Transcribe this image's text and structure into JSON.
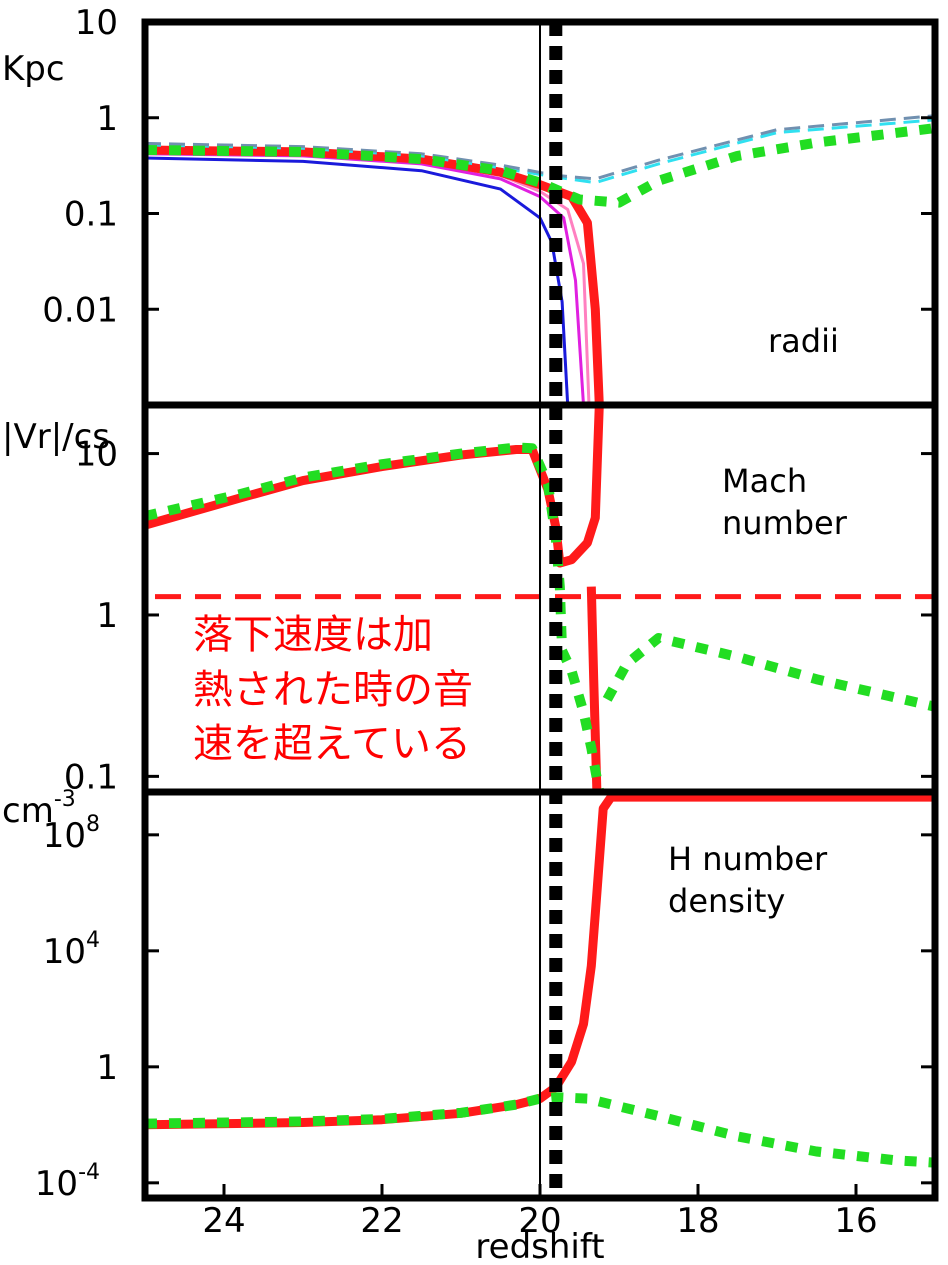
{
  "chart_data": {
    "type": "line",
    "xlabel": "redshift",
    "x_ticks": [
      "24",
      "22",
      "20",
      "18",
      "16"
    ],
    "xlim": [
      25,
      15
    ],
    "marker_line_z": 20,
    "dotted_marker_z": 19.8,
    "colors": {
      "red": "#ff1a1a",
      "green": "#22dd22",
      "blue": "#1a1adb",
      "magenta": "#e020e0",
      "pink": "#ff80c0",
      "cyan": "#30e0f0",
      "gray": "#7090b0"
    },
    "panels": [
      {
        "id": "radii",
        "label": "radii",
        "y_unit": "Kpc",
        "y_scale": "log",
        "ylim": [
          0.001,
          10
        ],
        "y_ticks": [
          {
            "value": 10,
            "base": "10",
            "exp": ""
          },
          {
            "value": 1,
            "base": "1",
            "exp": ""
          },
          {
            "value": 0.1,
            "base": "0.1",
            "exp": ""
          },
          {
            "value": 0.01,
            "base": "0.01",
            "exp": ""
          }
        ],
        "series": [
          {
            "color": "blue",
            "style": "solid",
            "width": 3,
            "points": [
              [
                25,
                0.38
              ],
              [
                23,
                0.35
              ],
              [
                21.5,
                0.28
              ],
              [
                20.5,
                0.18
              ],
              [
                20.0,
                0.09
              ],
              [
                19.85,
                0.05
              ],
              [
                19.72,
                0.012
              ],
              [
                19.65,
                0.001
              ]
            ]
          },
          {
            "color": "magenta",
            "style": "solid",
            "width": 3,
            "points": [
              [
                25,
                0.42
              ],
              [
                23,
                0.4
              ],
              [
                21.5,
                0.33
              ],
              [
                20.5,
                0.23
              ],
              [
                20.0,
                0.15
              ],
              [
                19.7,
                0.09
              ],
              [
                19.55,
                0.02
              ],
              [
                19.45,
                0.001
              ]
            ]
          },
          {
            "color": "pink",
            "style": "solid",
            "width": 3,
            "points": [
              [
                25,
                0.44
              ],
              [
                23,
                0.42
              ],
              [
                21.5,
                0.35
              ],
              [
                20.5,
                0.25
              ],
              [
                20.0,
                0.17
              ],
              [
                19.65,
                0.11
              ],
              [
                19.45,
                0.03
              ],
              [
                19.38,
                0.001
              ]
            ]
          },
          {
            "color": "red",
            "style": "solid",
            "width": 9,
            "points": [
              [
                25,
                0.46
              ],
              [
                23,
                0.44
              ],
              [
                21.5,
                0.37
              ],
              [
                20.5,
                0.27
              ],
              [
                20.0,
                0.2
              ],
              [
                19.6,
                0.15
              ],
              [
                19.4,
                0.08
              ],
              [
                19.3,
                0.01
              ],
              [
                19.25,
                0.001
              ]
            ]
          },
          {
            "color": "cyan",
            "style": "dashed",
            "width": 3,
            "points": [
              [
                25,
                0.52
              ],
              [
                23,
                0.48
              ],
              [
                21.5,
                0.4
              ],
              [
                20.5,
                0.3
              ],
              [
                19.8,
                0.24
              ],
              [
                19.3,
                0.21
              ],
              [
                18.5,
                0.33
              ],
              [
                17,
                0.7
              ],
              [
                15,
                0.95
              ]
            ]
          },
          {
            "color": "gray",
            "style": "dashed",
            "width": 3,
            "points": [
              [
                25,
                0.54
              ],
              [
                23,
                0.5
              ],
              [
                21.5,
                0.42
              ],
              [
                20.5,
                0.32
              ],
              [
                19.8,
                0.25
              ],
              [
                19.3,
                0.23
              ],
              [
                18.5,
                0.36
              ],
              [
                17,
                0.75
              ],
              [
                15,
                1.05
              ]
            ]
          },
          {
            "color": "green",
            "style": "dotted",
            "width": 10,
            "points": [
              [
                25,
                0.46
              ],
              [
                23,
                0.44
              ],
              [
                21.5,
                0.37
              ],
              [
                20.5,
                0.28
              ],
              [
                20.0,
                0.21
              ],
              [
                19.5,
                0.14
              ],
              [
                19.0,
                0.13
              ],
              [
                18.5,
                0.22
              ],
              [
                17.5,
                0.4
              ],
              [
                16.5,
                0.55
              ],
              [
                15,
                0.78
              ]
            ]
          }
        ]
      },
      {
        "id": "mach",
        "label": "Mach\nnumber",
        "y_unit": "|Vr|/cs",
        "y_scale": "log",
        "ylim": [
          0.08,
          20
        ],
        "y_ticks": [
          {
            "value": 10,
            "base": "10",
            "exp": ""
          },
          {
            "value": 1,
            "base": "1",
            "exp": ""
          },
          {
            "value": 0.1,
            "base": "0.1",
            "exp": ""
          }
        ],
        "reference_line": {
          "value": 1.3,
          "color": "red",
          "style": "dashed"
        },
        "annotation": [
          "落下速度は加",
          "熱された時の音",
          "速を超えている"
        ],
        "series": [
          {
            "color": "red",
            "style": "solid",
            "width": 9,
            "points": [
              [
                25,
                3.6
              ],
              [
                23.8,
                5.3
              ],
              [
                23,
                6.8
              ],
              [
                22,
                8.3
              ],
              [
                21,
                9.8
              ],
              [
                20.3,
                10.6
              ],
              [
                20.1,
                10.6
              ],
              [
                19.9,
                6.0
              ],
              [
                19.8,
                3.5
              ],
              [
                19.75,
                2.1
              ],
              [
                19.6,
                2.2
              ],
              [
                19.4,
                2.8
              ],
              [
                19.3,
                4.0
              ],
              [
                19.25,
                20
              ]
            ]
          },
          {
            "color": "red",
            "style": "solid",
            "width": 9,
            "points": [
              [
                19.35,
                1.5
              ],
              [
                19.32,
                0.4
              ],
              [
                19.28,
                0.08
              ]
            ]
          },
          {
            "color": "green",
            "style": "dotted",
            "width": 10,
            "points": [
              [
                25,
                4.1
              ],
              [
                23.8,
                5.6
              ],
              [
                23,
                7.1
              ],
              [
                22,
                8.6
              ],
              [
                21,
                10.0
              ],
              [
                20.3,
                10.9
              ],
              [
                20.1,
                10.8
              ],
              [
                19.9,
                6.5
              ],
              [
                19.8,
                3.0
              ],
              [
                19.75,
                1.5
              ],
              [
                19.72,
                0.6
              ],
              [
                19.6,
                0.45
              ],
              [
                19.45,
                0.25
              ],
              [
                19.35,
                0.15
              ],
              [
                19.25,
                0.08
              ]
            ]
          },
          {
            "color": "green",
            "style": "dotted",
            "width": 10,
            "points": [
              [
                19.15,
                0.3
              ],
              [
                18.9,
                0.5
              ],
              [
                18.5,
                0.72
              ],
              [
                17.5,
                0.55
              ],
              [
                16.5,
                0.4
              ],
              [
                15,
                0.27
              ]
            ]
          }
        ]
      },
      {
        "id": "density",
        "label": "H number\ndensity",
        "y_unit": "cm",
        "y_unit_exp": "-3",
        "y_scale": "log",
        "ylim": [
          3e-05,
          3000000000
        ],
        "y_ticks": [
          {
            "value": 100000000,
            "base": "10",
            "exp": "8"
          },
          {
            "value": 10000,
            "base": "10",
            "exp": "4"
          },
          {
            "value": 1,
            "base": "1",
            "exp": ""
          },
          {
            "value": 0.0001,
            "base": "10",
            "exp": "-4"
          }
        ],
        "series": [
          {
            "color": "red",
            "style": "solid",
            "width": 9,
            "points": [
              [
                25,
                0.01
              ],
              [
                23,
                0.012
              ],
              [
                22,
                0.015
              ],
              [
                21,
                0.025
              ],
              [
                20.3,
                0.05
              ],
              [
                20.0,
                0.08
              ],
              [
                19.8,
                0.2
              ],
              [
                19.6,
                1.5
              ],
              [
                19.45,
                30
              ],
              [
                19.35,
                3000
              ],
              [
                19.28,
                1000000
              ],
              [
                19.2,
                800000000
              ],
              [
                19.1,
                2000000000
              ],
              [
                18,
                2000000000
              ],
              [
                15,
                2000000000
              ]
            ]
          },
          {
            "color": "green",
            "style": "dotted",
            "width": 10,
            "points": [
              [
                25,
                0.011
              ],
              [
                23,
                0.013
              ],
              [
                22,
                0.016
              ],
              [
                21,
                0.026
              ],
              [
                20.3,
                0.05
              ],
              [
                20.0,
                0.08
              ],
              [
                19.8,
                0.09
              ],
              [
                19.4,
                0.08
              ],
              [
                18.5,
                0.02
              ],
              [
                17.5,
                0.004
              ],
              [
                16.5,
                0.0012
              ],
              [
                15.5,
                0.0006
              ],
              [
                15,
                0.0005
              ]
            ]
          }
        ]
      }
    ]
  }
}
